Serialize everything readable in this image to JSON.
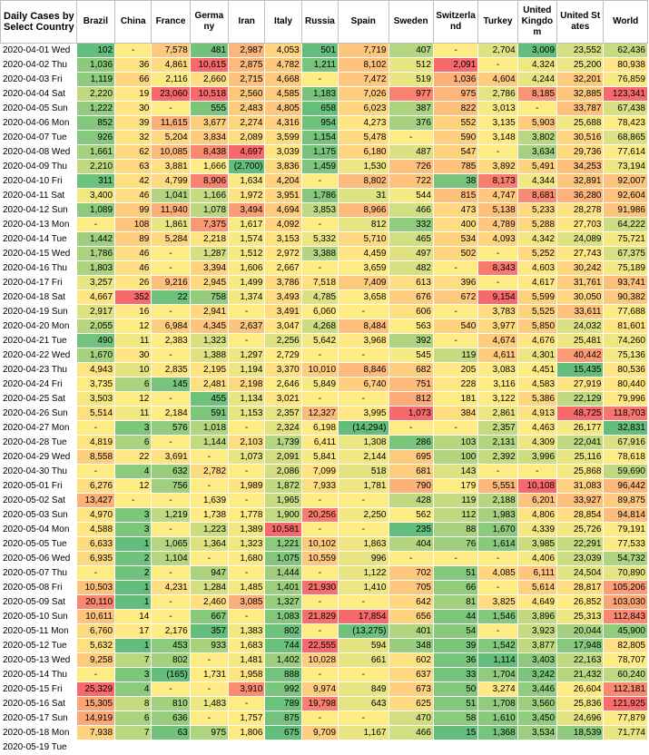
{
  "header": {
    "corner": "Daily Cases by Select Country",
    "countries": [
      "Brazil",
      "China",
      "France",
      "Germany",
      "Iran",
      "Italy",
      "Russia",
      "Spain",
      "Sweden",
      "Switzerland",
      "Turkey",
      "United Kingdom",
      "United States",
      "World"
    ]
  },
  "colors": {
    "red": "#f8696b",
    "orange": "#fbaa77",
    "yellow": "#ffeb84",
    "light_green": "#c8dd81",
    "green": "#63be7b"
  },
  "rows": [
    {
      "date": "2020-04-01 Wed",
      "values": [
        "102",
        "-",
        "7,578",
        "481",
        "2,987",
        "4,053",
        "501",
        "7,719",
        "407",
        "-",
        "2,704",
        "3,009",
        "23,552",
        "62,436"
      ]
    },
    {
      "date": "2020-04-02 Thu",
      "values": [
        "1,036",
        "36",
        "4,861",
        "10,615",
        "2,875",
        "4,782",
        "1,211",
        "8,102",
        "512",
        "2,091",
        "-",
        "4,324",
        "25,200",
        "80,938"
      ]
    },
    {
      "date": "2020-04-03 Fri",
      "values": [
        "1,119",
        "66",
        "2,116",
        "2,660",
        "2,715",
        "4,668",
        "-",
        "7,472",
        "519",
        "1,036",
        "4,604",
        "4,244",
        "32,201",
        "76,859"
      ]
    },
    {
      "date": "2020-04-04 Sat",
      "values": [
        "2,220",
        "19",
        "23,060",
        "10,518",
        "2,560",
        "4,585",
        "1,183",
        "7,026",
        "977",
        "975",
        "2,786",
        "8,185",
        "32,885",
        "123,341"
      ]
    },
    {
      "date": "2020-04-05 Sun",
      "values": [
        "1,222",
        "30",
        "-",
        "555",
        "2,483",
        "4,805",
        "658",
        "6,023",
        "387",
        "822",
        "3,013",
        "-",
        "33,787",
        "67,438"
      ]
    },
    {
      "date": "2020-04-06 Mon",
      "values": [
        "852",
        "39",
        "11,615",
        "3,677",
        "2,274",
        "4,316",
        "954",
        "4,273",
        "376",
        "552",
        "3,135",
        "5,903",
        "25,688",
        "78,423"
      ]
    },
    {
      "date": "2020-04-07 Tue",
      "values": [
        "926",
        "32",
        "5,204",
        "3,834",
        "2,089",
        "3,599",
        "1,154",
        "5,478",
        "-",
        "590",
        "3,148",
        "3,802",
        "30,516",
        "68,865"
      ]
    },
    {
      "date": "2020-04-08 Wed",
      "values": [
        "1,661",
        "62",
        "10,085",
        "8,438",
        "4,697",
        "3,039",
        "1,175",
        "6,180",
        "487",
        "547",
        "-",
        "3,634",
        "29,736",
        "77,614"
      ]
    },
    {
      "date": "2020-04-09 Thu",
      "values": [
        "2,210",
        "63",
        "3,881",
        "1,666",
        "(2,700)",
        "3,836",
        "1,459",
        "1,530",
        "726",
        "785",
        "3,892",
        "5,491",
        "34,253",
        "73,194"
      ]
    },
    {
      "date": "2020-04-10 Fri",
      "values": [
        "311",
        "42",
        "4,799",
        "8,906",
        "1,634",
        "4,204",
        "-",
        "8,802",
        "722",
        "38",
        "8,173",
        "4,344",
        "32,891",
        "92,007"
      ]
    },
    {
      "date": "2020-04-11 Sat",
      "values": [
        "3,400",
        "46",
        "1,041",
        "1,166",
        "1,972",
        "3,951",
        "1,786",
        "31",
        "544",
        "815",
        "4,747",
        "8,681",
        "36,280",
        "92,604"
      ]
    },
    {
      "date": "2020-04-12 Sun",
      "values": [
        "1,089",
        "99",
        "11,940",
        "1,078",
        "3,494",
        "4,694",
        "3,853",
        "8,966",
        "466",
        "473",
        "5,138",
        "5,233",
        "28,278",
        "91,986"
      ]
    },
    {
      "date": "2020-04-13 Mon",
      "values": [
        "-",
        "108",
        "1,861",
        "7,375",
        "1,617",
        "4,092",
        "-",
        "812",
        "332",
        "400",
        "4,789",
        "5,288",
        "27,703",
        "64,222"
      ]
    },
    {
      "date": "2020-04-14 Tue",
      "values": [
        "1,442",
        "89",
        "5,284",
        "2,218",
        "1,574",
        "3,153",
        "5,332",
        "5,710",
        "465",
        "534",
        "4,093",
        "4,342",
        "24,089",
        "75,721"
      ]
    },
    {
      "date": "2020-04-15 Wed",
      "values": [
        "1,786",
        "46",
        "-",
        "1,287",
        "1,512",
        "2,972",
        "3,388",
        "4,459",
        "497",
        "502",
        "-",
        "5,252",
        "27,743",
        "67,375"
      ]
    },
    {
      "date": "2020-04-16 Thu",
      "values": [
        "1,803",
        "46",
        "-",
        "3,394",
        "1,606",
        "2,667",
        "-",
        "3,659",
        "482",
        "-",
        "8,343",
        "4,603",
        "30,242",
        "75,189"
      ]
    },
    {
      "date": "2020-04-17 Fri",
      "values": [
        "3,257",
        "26",
        "9,216",
        "2,945",
        "1,499",
        "3,786",
        "7,518",
        "7,409",
        "613",
        "396",
        "-",
        "4,617",
        "31,761",
        "93,741"
      ]
    },
    {
      "date": "2020-04-18 Sat",
      "values": [
        "4,667",
        "352",
        "22",
        "758",
        "1,374",
        "3,493",
        "4,785",
        "3,658",
        "676",
        "672",
        "9,154",
        "5,599",
        "30,050",
        "90,382"
      ]
    },
    {
      "date": "2020-04-19 Sun",
      "values": [
        "2,917",
        "16",
        "-",
        "2,941",
        "-",
        "3,491",
        "6,060",
        "-",
        "606",
        "-",
        "3,783",
        "5,525",
        "33,611",
        "77,688"
      ]
    },
    {
      "date": "2020-04-20 Mon",
      "values": [
        "2,055",
        "12",
        "6,984",
        "4,345",
        "2,637",
        "3,047",
        "4,268",
        "8,484",
        "563",
        "540",
        "3,977",
        "5,850",
        "24,032",
        "81,601"
      ]
    },
    {
      "date": "2020-04-21 Tue",
      "values": [
        "490",
        "11",
        "2,383",
        "1,323",
        "-",
        "2,256",
        "5,642",
        "3,968",
        "392",
        "-",
        "4,674",
        "4,676",
        "25,481",
        "74,260"
      ]
    },
    {
      "date": "2020-04-22 Wed",
      "values": [
        "1,670",
        "30",
        "-",
        "1,388",
        "1,297",
        "2,729",
        "-",
        "-",
        "545",
        "119",
        "4,611",
        "4,301",
        "40,442",
        "75,136"
      ]
    },
    {
      "date": "2020-04-23 Thu",
      "values": [
        "4,943",
        "10",
        "2,835",
        "2,195",
        "1,194",
        "3,370",
        "10,010",
        "8,846",
        "682",
        "205",
        "3,083",
        "4,451",
        "15,435",
        "80,536"
      ]
    },
    {
      "date": "2020-04-24 Fri",
      "values": [
        "3,735",
        "6",
        "145",
        "2,481",
        "2,198",
        "2,646",
        "5,849",
        "6,740",
        "751",
        "228",
        "3,116",
        "4,583",
        "27,919",
        "80,440"
      ]
    },
    {
      "date": "2020-04-25 Sat",
      "values": [
        "3,503",
        "12",
        "-",
        "455",
        "1,134",
        "3,021",
        "-",
        "-",
        "812",
        "181",
        "3,122",
        "5,386",
        "22,129",
        "79,996"
      ]
    },
    {
      "date": "2020-04-26 Sun",
      "values": [
        "5,514",
        "11",
        "2,184",
        "591",
        "1,153",
        "2,357",
        "12,327",
        "3,995",
        "1,073",
        "384",
        "2,861",
        "4,913",
        "48,725",
        "118,703"
      ]
    },
    {
      "date": "2020-04-27 Mon",
      "values": [
        "-",
        "3",
        "576",
        "1,018",
        "-",
        "2,324",
        "6,198",
        "(14,294)",
        "-",
        "-",
        "2,357",
        "4,463",
        "26,177",
        "32,831"
      ]
    },
    {
      "date": "2020-04-28 Tue",
      "values": [
        "4,819",
        "6",
        "-",
        "1,144",
        "2,103",
        "1,739",
        "6,411",
        "1,308",
        "286",
        "103",
        "2,131",
        "4,309",
        "22,041",
        "67,916"
      ]
    },
    {
      "date": "2020-04-29 Wed",
      "values": [
        "8,558",
        "22",
        "3,691",
        "-",
        "1,073",
        "2,091",
        "5,841",
        "2,144",
        "695",
        "100",
        "2,392",
        "3,996",
        "25,116",
        "78,618"
      ]
    },
    {
      "date": "2020-04-30 Thu",
      "values": [
        "-",
        "4",
        "632",
        "2,782",
        "-",
        "2,086",
        "7,099",
        "518",
        "681",
        "143",
        "-",
        "-",
        "25,868",
        "59,690"
      ]
    },
    {
      "date": "2020-05-01 Fri",
      "values": [
        "6,276",
        "12",
        "756",
        "-",
        "1,989",
        "1,872",
        "7,933",
        "1,781",
        "790",
        "179",
        "5,551",
        "10,108",
        "31,083",
        "96,442"
      ]
    },
    {
      "date": "2020-05-02 Sat",
      "values": [
        "13,427",
        "-",
        "-",
        "1,639",
        "-",
        "1,965",
        "-",
        "-",
        "428",
        "119",
        "2,188",
        "6,201",
        "33,927",
        "89,875"
      ]
    },
    {
      "date": "2020-05-03 Sun",
      "values": [
        "4,970",
        "3",
        "1,219",
        "1,738",
        "1,778",
        "1,900",
        "20,256",
        "2,250",
        "562",
        "112",
        "1,983",
        "4,806",
        "28,854",
        "94,814"
      ]
    },
    {
      "date": "2020-05-04 Mon",
      "values": [
        "4,588",
        "3",
        "-",
        "1,223",
        "1,389",
        "10,581",
        "-",
        "-",
        "235",
        "88",
        "1,670",
        "4,339",
        "25,726",
        "79,191"
      ]
    },
    {
      "date": "2020-05-05 Tue",
      "values": [
        "6,633",
        "1",
        "1,065",
        "1,364",
        "1,323",
        "1,221",
        "10,102",
        "1,863",
        "404",
        "76",
        "1,614",
        "3,985",
        "22,291",
        "77,533"
      ]
    },
    {
      "date": "2020-05-06 Wed",
      "values": [
        "6,935",
        "2",
        "1,104",
        "-",
        "1,680",
        "1,075",
        "10,559",
        "996",
        "-",
        "-",
        "-",
        "4,406",
        "23,039",
        "54,732"
      ]
    },
    {
      "date": "2020-05-07 Thu",
      "values": [
        "-",
        "2",
        "-",
        "947",
        "-",
        "1,444",
        "-",
        "1,122",
        "702",
        "51",
        "4,085",
        "6,111",
        "24,504",
        "70,890"
      ]
    },
    {
      "date": "2020-05-08 Fri",
      "values": [
        "10,503",
        "1",
        "4,231",
        "1,284",
        "1,485",
        "1,401",
        "21,930",
        "1,410",
        "705",
        "66",
        "-",
        "5,614",
        "28,817",
        "105,206"
      ]
    },
    {
      "date": "2020-05-09 Sat",
      "values": [
        "20,110",
        "1",
        "-",
        "2,460",
        "3,085",
        "1,327",
        "-",
        "-",
        "642",
        "81",
        "3,825",
        "4,649",
        "26,852",
        "103,030"
      ]
    },
    {
      "date": "2020-05-10 Sun",
      "values": [
        "10,611",
        "14",
        "-",
        "667",
        "-",
        "1,083",
        "21,829",
        "17,854",
        "656",
        "44",
        "1,546",
        "3,896",
        "25,313",
        "112,843"
      ]
    },
    {
      "date": "2020-05-11 Mon",
      "values": [
        "6,760",
        "17",
        "2,176",
        "357",
        "1,383",
        "802",
        "-",
        "(13,275)",
        "401",
        "54",
        "-",
        "3,923",
        "20,044",
        "45,900"
      ]
    },
    {
      "date": "2020-05-12 Tue",
      "values": [
        "5,632",
        "1",
        "453",
        "933",
        "1,683",
        "744",
        "22,555",
        "594",
        "348",
        "39",
        "1,542",
        "3,877",
        "17,948",
        "82,805"
      ]
    },
    {
      "date": "2020-05-13 Wed",
      "values": [
        "9,258",
        "7",
        "802",
        "-",
        "1,481",
        "1,402",
        "10,028",
        "661",
        "602",
        "36",
        "1,114",
        "3,403",
        "22,163",
        "78,707"
      ]
    },
    {
      "date": "2020-05-14 Thu",
      "values": [
        "-",
        "3",
        "(165)",
        "1,731",
        "1,958",
        "888",
        "-",
        "-",
        "637",
        "33",
        "1,704",
        "3,242",
        "21,432",
        "60,240"
      ]
    },
    {
      "date": "2020-05-15 Fri",
      "values": [
        "25,329",
        "4",
        "-",
        "-",
        "3,910",
        "992",
        "9,974",
        "849",
        "673",
        "50",
        "3,274",
        "3,446",
        "26,604",
        "112,181"
      ]
    },
    {
      "date": "2020-05-16 Sat",
      "values": [
        "15,305",
        "8",
        "810",
        "1,483",
        "-",
        "789",
        "19,798",
        "643",
        "625",
        "51",
        "1,708",
        "3,560",
        "25,836",
        "121,925"
      ]
    },
    {
      "date": "2020-05-17 Sun",
      "values": [
        "14,919",
        "6",
        "636",
        "-",
        "1,757",
        "875",
        "-",
        "-",
        "470",
        "58",
        "1,610",
        "3,450",
        "24,696",
        "77,879"
      ]
    },
    {
      "date": "2020-05-18 Mon",
      "values": [
        "7,938",
        "7",
        "63",
        "975",
        "1,806",
        "675",
        "9,709",
        "1,167",
        "466",
        "15",
        "1,368",
        "3,534",
        "18,539",
        "71,774"
      ]
    },
    {
      "date": "2020-05-19 Tue",
      "values": [
        "",
        "",
        "",
        "",
        "",
        "",
        "",
        "",
        "",
        "",
        "",
        "",
        "",
        ""
      ]
    }
  ]
}
